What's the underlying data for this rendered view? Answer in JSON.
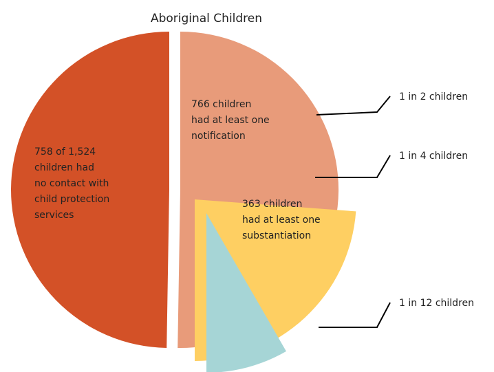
{
  "chart_data": {
    "type": "pie",
    "title": "Aboriginal Children",
    "segments": [
      {
        "value": 758,
        "color": "#d35127",
        "label_lines": [
          "758 of 1,524",
          "children had",
          "no contact with",
          "child protection",
          "services"
        ]
      },
      {
        "value": 766,
        "color": "#e89b7a",
        "label_lines": [
          "766 children",
          "had at least one",
          "notification"
        ],
        "callout": "1 in 2 children"
      },
      {
        "value": 363,
        "color": "#fecf62",
        "label_lines": [
          "363 children",
          "had at least one",
          "substantiation"
        ],
        "callout": "1 in 4 children"
      },
      {
        "value": 127,
        "color": "#a6d5d6",
        "label_lines": null,
        "callout": "1 in 12 children"
      }
    ]
  }
}
